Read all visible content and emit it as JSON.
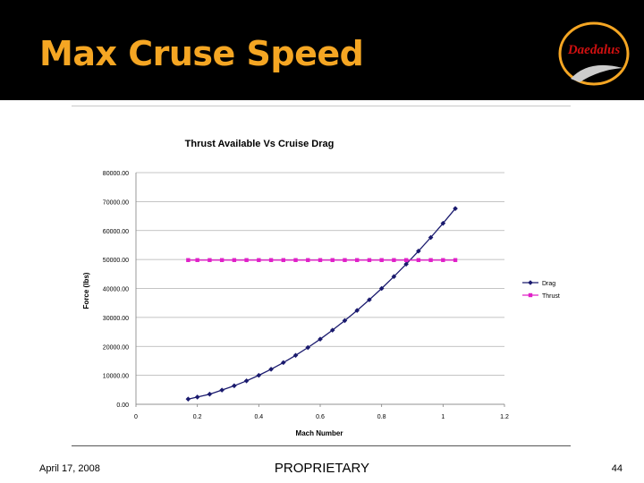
{
  "slide": {
    "title": "Max Cruse Speed",
    "logo_text": "Daedalus",
    "footer_date": "April 17, 2008",
    "footer_center": "PROPRIETARY",
    "page_number": "44"
  },
  "colors": {
    "title": "#f5a623",
    "header_bg": "#000000",
    "drag": "#1a1a6e",
    "thrust": "#e020c8",
    "logo_red": "#d01010"
  },
  "chart_data": {
    "type": "line",
    "title": "Thrust Available Vs Cruise Drag",
    "xlabel": "Mach Number",
    "ylabel": "Force (lbs)",
    "xlim": [
      0,
      1.2
    ],
    "ylim": [
      0,
      80000
    ],
    "x_ticks": [
      "0",
      "0.2",
      "0.4",
      "0.6",
      "0.8",
      "1",
      "1.2"
    ],
    "y_ticks": [
      "0.00",
      "10000.00",
      "20000.00",
      "30000.00",
      "40000.00",
      "50000.00",
      "60000.00",
      "70000.00",
      "80000.00"
    ],
    "grid": "horizontal",
    "legend_position": "right",
    "series": [
      {
        "name": "Drag",
        "marker": "diamond",
        "x": [
          0.17,
          0.2,
          0.24,
          0.28,
          0.32,
          0.36,
          0.4,
          0.44,
          0.48,
          0.52,
          0.56,
          0.6,
          0.64,
          0.68,
          0.72,
          0.76,
          0.8,
          0.84,
          0.88,
          0.92,
          0.96,
          1.0,
          1.04
        ],
        "y": [
          1800,
          2500,
          3500,
          4900,
          6400,
          8100,
          10000,
          12100,
          14400,
          16900,
          19600,
          22500,
          25600,
          28900,
          32400,
          36100,
          40000,
          44100,
          48400,
          52900,
          57600,
          62500,
          67600
        ]
      },
      {
        "name": "Thrust",
        "marker": "square",
        "x": [
          0.17,
          0.2,
          0.24,
          0.28,
          0.32,
          0.36,
          0.4,
          0.44,
          0.48,
          0.52,
          0.56,
          0.6,
          0.64,
          0.68,
          0.72,
          0.76,
          0.8,
          0.84,
          0.88,
          0.92,
          0.96,
          1.0,
          1.04
        ],
        "y": [
          49800,
          49800,
          49800,
          49800,
          49800,
          49800,
          49800,
          49800,
          49800,
          49800,
          49800,
          49800,
          49800,
          49800,
          49800,
          49800,
          49800,
          49800,
          49800,
          49800,
          49800,
          49800,
          49800
        ]
      }
    ]
  }
}
